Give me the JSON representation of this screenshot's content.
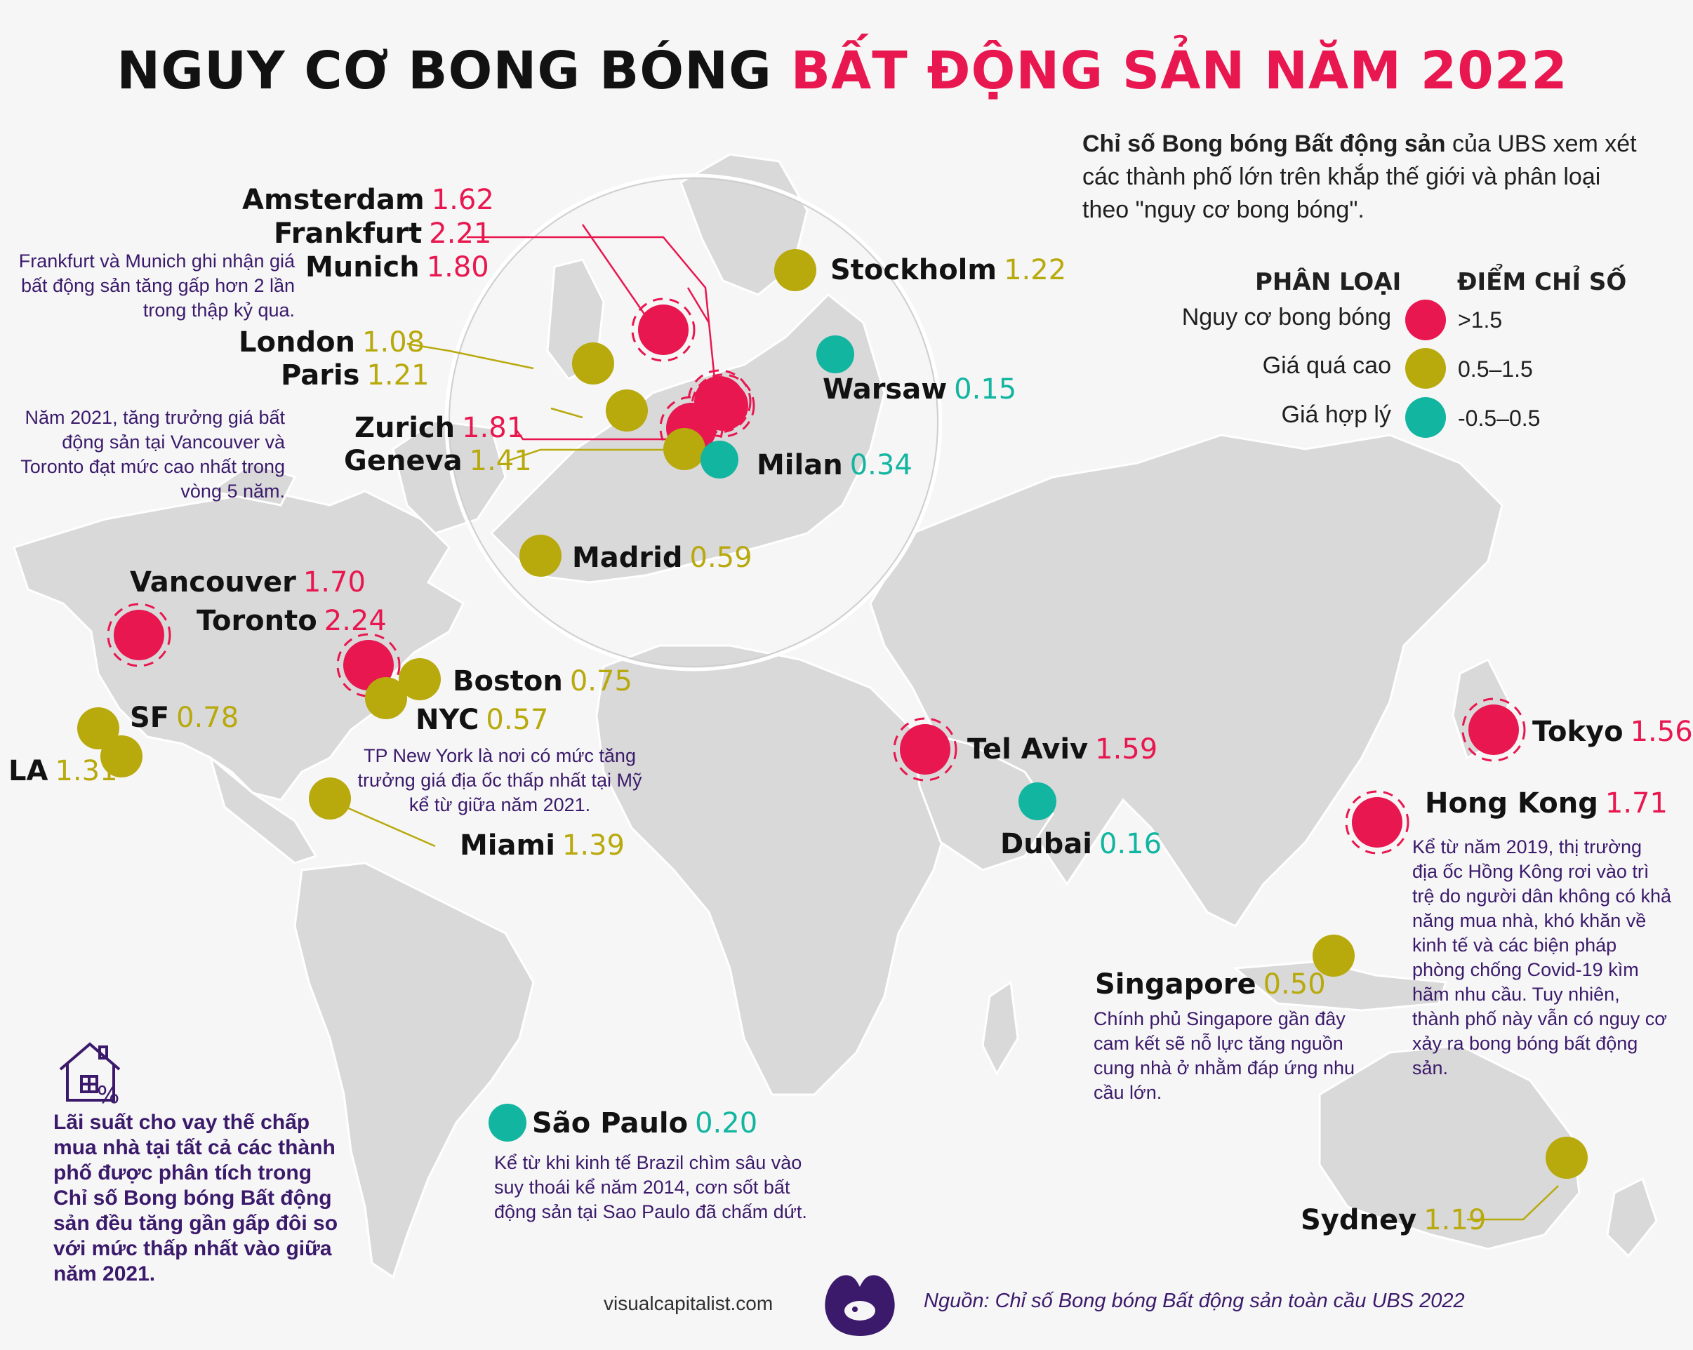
{
  "title": {
    "part1": "NGUY CƠ BONG BÓNG ",
    "part2": "BẤT ĐỘNG SẢN NĂM 2022"
  },
  "intro": {
    "bold": "Chỉ số Bong bóng Bất động sản",
    "rest": " của UBS xem xét các thành phố lớn trên khắp thế giới và phân loại theo \"nguy cơ bong bóng\"."
  },
  "legend": {
    "head_category": "PHÂN LOẠI",
    "head_score": "ĐIỂM CHỈ SỐ",
    "items": [
      {
        "label": "Nguy cơ bong bóng",
        "range": ">1.5",
        "color": "#e8174f"
      },
      {
        "label": "Giá quá cao",
        "range": "0.5–1.5",
        "color": "#b8a90c"
      },
      {
        "label": "Giá hợp lý",
        "range": "-0.5–0.5",
        "color": "#12b5a0"
      }
    ]
  },
  "colors": {
    "bubble": "#e8174f",
    "overvalued": "#b8a90c",
    "fair": "#12b5a0",
    "land": "#d9d9d9",
    "coast": "#ffffff",
    "note": "#3b1a6b"
  },
  "cities": [
    {
      "name": "Amsterdam",
      "score": "1.62",
      "cat": "bubble"
    },
    {
      "name": "Frankfurt",
      "score": "2.21",
      "cat": "bubble"
    },
    {
      "name": "Munich",
      "score": "1.80",
      "cat": "bubble"
    },
    {
      "name": "London",
      "score": "1.08",
      "cat": "overvalued"
    },
    {
      "name": "Paris",
      "score": "1.21",
      "cat": "overvalued"
    },
    {
      "name": "Zurich",
      "score": "1.81",
      "cat": "bubble"
    },
    {
      "name": "Geneva",
      "score": "1.41",
      "cat": "overvalued"
    },
    {
      "name": "Stockholm",
      "score": "1.22",
      "cat": "overvalued"
    },
    {
      "name": "Warsaw",
      "score": "0.15",
      "cat": "fair"
    },
    {
      "name": "Milan",
      "score": "0.34",
      "cat": "fair"
    },
    {
      "name": "Madrid",
      "score": "0.59",
      "cat": "overvalued"
    },
    {
      "name": "Vancouver",
      "score": "1.70",
      "cat": "bubble"
    },
    {
      "name": "Toronto",
      "score": "2.24",
      "cat": "bubble"
    },
    {
      "name": "Boston",
      "score": "0.75",
      "cat": "overvalued"
    },
    {
      "name": "NYC",
      "score": "0.57",
      "cat": "overvalued"
    },
    {
      "name": "SF",
      "score": "0.78",
      "cat": "overvalued"
    },
    {
      "name": "LA",
      "score": "1.31",
      "cat": "overvalued"
    },
    {
      "name": "Miami",
      "score": "1.39",
      "cat": "overvalued"
    },
    {
      "name": "Tel Aviv",
      "score": "1.59",
      "cat": "bubble"
    },
    {
      "name": "Dubai",
      "score": "0.16",
      "cat": "fair"
    },
    {
      "name": "Tokyo",
      "score": "1.56",
      "cat": "bubble"
    },
    {
      "name": "Hong Kong",
      "score": "1.71",
      "cat": "bubble"
    },
    {
      "name": "Singapore",
      "score": "0.50",
      "cat": "overvalued"
    },
    {
      "name": "São Paulo",
      "score": "0.20",
      "cat": "fair"
    },
    {
      "name": "Sydney",
      "score": "1.19",
      "cat": "overvalued"
    }
  ],
  "notes": {
    "frankfurt_munich": "Frankfurt và Munich ghi nhận giá bất động sản tăng gấp hơn 2 lần trong thập kỷ qua.",
    "vancouver_toronto": "Năm 2021, tăng trưởng giá bất động sản tại Vancouver và Toronto đạt mức cao nhất trong vòng 5 năm.",
    "nyc": "TP New York là nơi có mức tăng trưởng giá địa ốc thấp nhất tại Mỹ kể từ giữa năm 2021.",
    "hong_kong": "Kể từ năm 2019, thị trường địa ốc Hồng Kông rơi vào trì trệ do người dân không có khả năng mua nhà, khó khăn về kinh tế và các biện pháp phòng chống Covid-19 kìm hãm nhu cầu. Tuy nhiên, thành phố này vẫn có nguy cơ xảy ra bong bóng bất động sản.",
    "singapore": "Chính phủ Singapore gần đây cam kết sẽ nỗ lực tăng nguồn cung nhà ở nhằm đáp ứng nhu cầu lớn.",
    "sao_paulo": "Kể từ khi kinh tế Brazil chìm sâu vào suy thoái kể năm 2014, cơn sốt bất động sản tại Sao Paulo đã chấm dứt.",
    "mortgage": "Lãi suất cho vay thế chấp mua nhà tại tất cả các thành phố được phân tích trong Chỉ số Bong bóng Bất động sản đều tăng gần gấp đôi so với mức thấp nhất vào giữa năm 2021."
  },
  "footer": {
    "site": "visualcapitalist.com",
    "source": "Nguồn: Chỉ số Bong bóng Bất động sản toàn cầu UBS 2022"
  },
  "icons": {
    "house": "house-percent-icon",
    "logo": "visual-capitalist-logo"
  }
}
